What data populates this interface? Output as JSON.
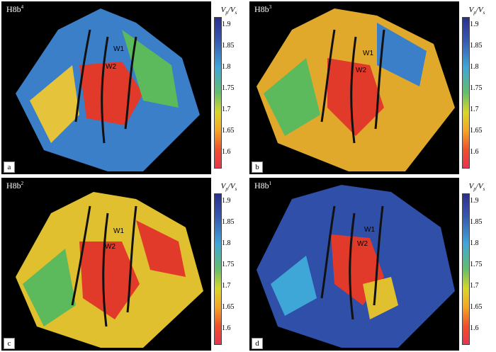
{
  "legend": {
    "title_main": "V",
    "title_sub_p": "p",
    "slash": "/",
    "title_main2": "V",
    "title_sub_s": "s",
    "ticks": [
      "1.9",
      "1.85",
      "1.8",
      "1.75",
      "1.7",
      "1.65",
      "1.6"
    ]
  },
  "panels": [
    {
      "letter": "a",
      "layer": "H8b",
      "layer_sup": "4",
      "well1": "W1",
      "well2": "W2"
    },
    {
      "letter": "b",
      "layer": "H8b",
      "layer_sup": "3",
      "well1": "W1",
      "well2": "W2"
    },
    {
      "letter": "c",
      "layer": "H8b",
      "layer_sup": "2",
      "well1": "W1",
      "well2": "W2"
    },
    {
      "letter": "d",
      "layer": "H8b",
      "layer_sup": "1",
      "well1": "W1",
      "well2": "W2"
    }
  ],
  "colors": {
    "high": "#2b2f8f",
    "mid": "#63bf6a",
    "low": "#e8344f"
  }
}
